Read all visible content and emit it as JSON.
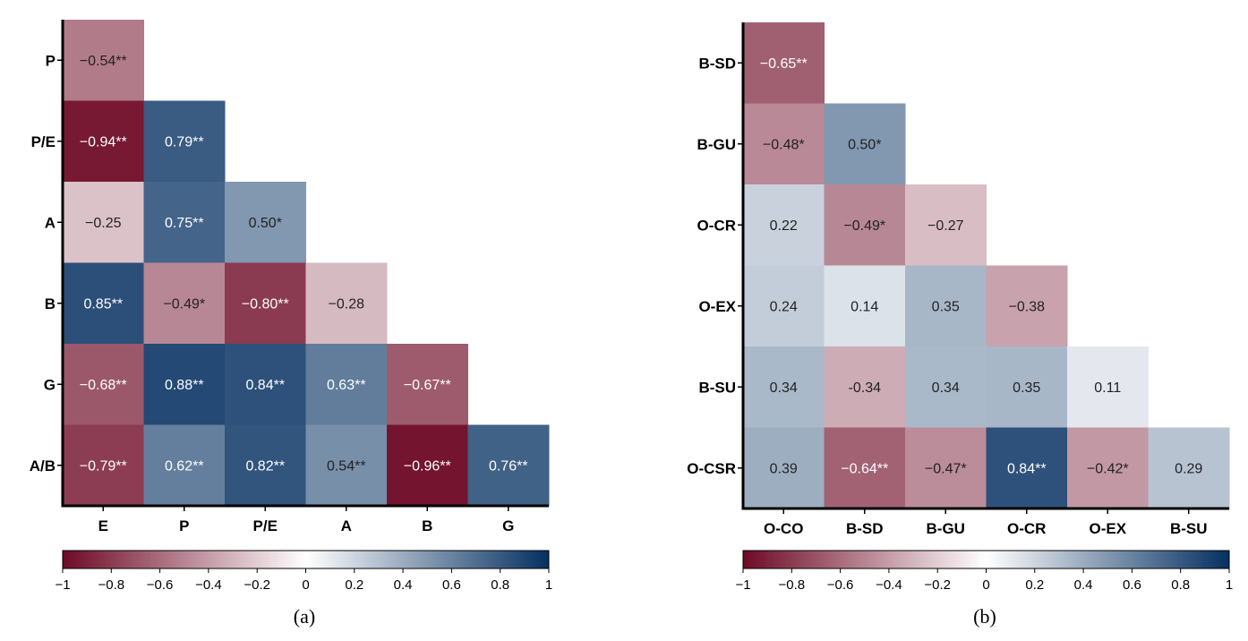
{
  "chart_data": [
    {
      "type": "heatmap",
      "caption": "(a)",
      "row_labels": [
        "P",
        "P/E",
        "A",
        "B",
        "G",
        "A/B"
      ],
      "col_labels": [
        "E",
        "P",
        "P/E",
        "A",
        "B",
        "G"
      ],
      "values": [
        [
          -0.54
        ],
        [
          -0.94,
          0.79
        ],
        [
          -0.25,
          0.75,
          0.5
        ],
        [
          0.85,
          -0.49,
          -0.8,
          -0.28
        ],
        [
          -0.68,
          0.88,
          0.84,
          0.63,
          -0.67
        ],
        [
          -0.79,
          0.62,
          0.82,
          0.54,
          -0.96,
          0.76
        ]
      ],
      "labels": [
        [
          "−0.54**"
        ],
        [
          "−0.94**",
          "0.79**"
        ],
        [
          "−0.25",
          "0.75**",
          "0.50*"
        ],
        [
          "0.85**",
          "−0.49*",
          "−0.80**",
          "−0.28"
        ],
        [
          "−0.68**",
          "0.88**",
          "0.84**",
          "0.63**",
          "−0.67**"
        ],
        [
          "−0.79**",
          "0.62**",
          "0.82**",
          "0.54**",
          "−0.96**",
          "0.76**"
        ]
      ],
      "colorbar": {
        "range": [
          -1,
          1
        ],
        "ticks": [
          "−1",
          "−0.8",
          "−0.6",
          "−0.4",
          "−0.2",
          "0",
          "0.2",
          "0.4",
          "0.6",
          "0.8",
          "1"
        ],
        "negative_color": "#6e0a26",
        "zero_color": "#ffffff",
        "positive_color": "#053061"
      }
    },
    {
      "type": "heatmap",
      "caption": "(b)",
      "row_labels": [
        "B-SD",
        "B-GU",
        "O-CR",
        "O-EX",
        "B-SU",
        "O-CSR"
      ],
      "col_labels": [
        "O-CO",
        "B-SD",
        "B-GU",
        "O-CR",
        "O-EX",
        "B-SU"
      ],
      "values": [
        [
          -0.65
        ],
        [
          -0.48,
          0.5
        ],
        [
          0.22,
          -0.49,
          -0.27
        ],
        [
          0.24,
          0.14,
          0.35,
          -0.38
        ],
        [
          0.34,
          -0.34,
          0.34,
          0.35,
          0.11
        ],
        [
          0.39,
          -0.64,
          -0.47,
          0.84,
          -0.42,
          0.29
        ]
      ],
      "labels": [
        [
          "−0.65**"
        ],
        [
          "−0.48*",
          "0.50*"
        ],
        [
          "0.22",
          "−0.49*",
          "−0.27"
        ],
        [
          "0.24",
          "0.14",
          "0.35",
          "−0.38"
        ],
        [
          "0.34",
          "-0.34",
          "0.34",
          "0.35",
          "0.11"
        ],
        [
          "0.39",
          "−0.64**",
          "−0.47*",
          "0.84**",
          "−0.42*",
          "0.29"
        ]
      ],
      "colorbar": {
        "range": [
          -1,
          1
        ],
        "ticks": [
          "−1",
          "−0.8",
          "−0.6",
          "−0.4",
          "−0.2",
          "0",
          "0.2",
          "0.4",
          "0.6",
          "0.8",
          "1"
        ],
        "negative_color": "#6e0a26",
        "zero_color": "#ffffff",
        "positive_color": "#053061"
      }
    }
  ]
}
